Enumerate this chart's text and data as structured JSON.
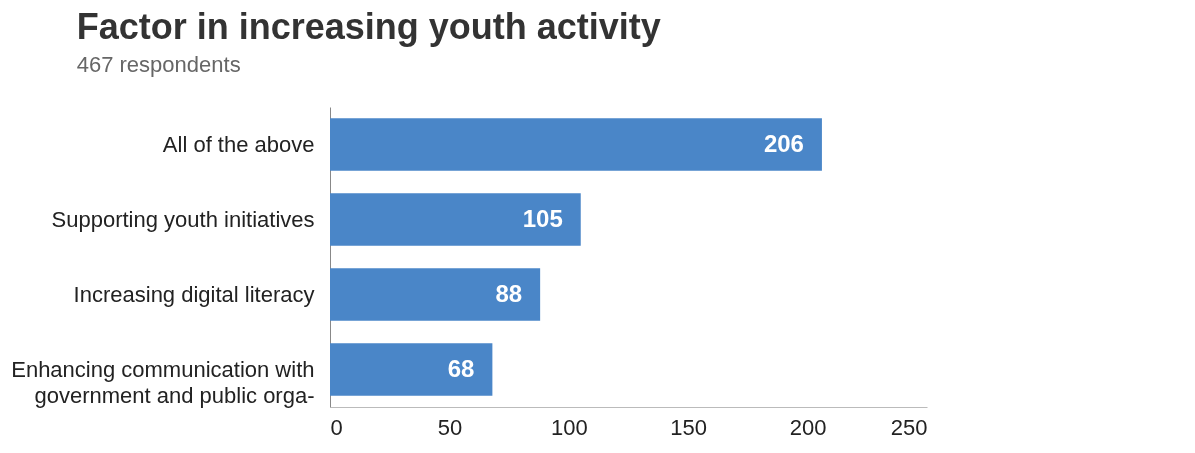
{
  "chart_data": {
    "type": "bar",
    "orientation": "horizontal",
    "title": "Factor in increasing youth activity",
    "subtitle": "467 respondents",
    "categories": [
      "All of the above",
      "Supporting youth initiatives",
      "Increasing digital literacy",
      "Enhancing communication with government and public orga-"
    ],
    "values": [
      206,
      105,
      88,
      68
    ],
    "color": "#4a86c8",
    "xlim": [
      0,
      250
    ],
    "xticks": [
      0,
      50,
      100,
      150,
      200,
      250
    ],
    "grid": false,
    "data_labels": true
  }
}
